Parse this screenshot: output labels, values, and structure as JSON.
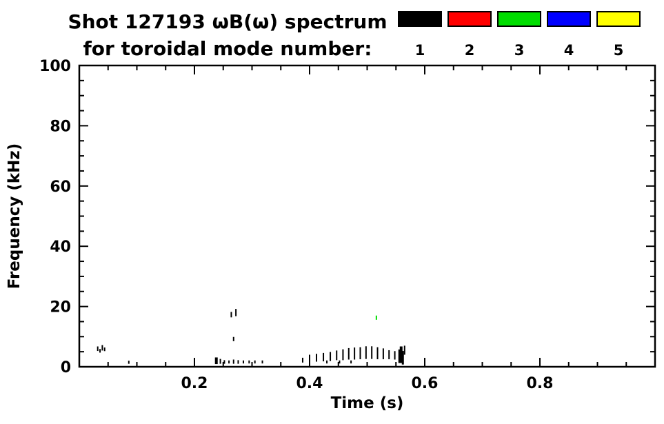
{
  "page": {
    "background": "#ffffff"
  },
  "chart_data": {
    "type": "scatter",
    "title_line1": "Shot 127193 ωB(ω) spectrum",
    "title_line2": "for toroidal mode number:",
    "xlabel": "Time (s)",
    "ylabel": "Frequency (kHz)",
    "xlim": [
      0.0,
      1.0
    ],
    "ylim": [
      0,
      100
    ],
    "xticks": [
      0.2,
      0.4,
      0.6,
      0.8
    ],
    "yticks": [
      0,
      20,
      40,
      60,
      80,
      100
    ],
    "x_minor_step": 0.05,
    "y_minor_step": 5,
    "grid": false,
    "legend_position": "top-right",
    "legend": [
      {
        "label": "1",
        "color": "#000000"
      },
      {
        "label": "2",
        "color": "#ff0000"
      },
      {
        "label": "3",
        "color": "#00dd00"
      },
      {
        "label": "4",
        "color": "#0000ff"
      },
      {
        "label": "5",
        "color": "#ffff00"
      }
    ],
    "points": [
      {
        "t": 0.032,
        "f": 6.0,
        "mode": 1,
        "h": 1.5
      },
      {
        "t": 0.036,
        "f": 5.3,
        "mode": 1,
        "h": 1.2
      },
      {
        "t": 0.04,
        "f": 6.3,
        "mode": 1,
        "h": 1.8
      },
      {
        "t": 0.044,
        "f": 5.8,
        "mode": 1,
        "h": 1.2
      },
      {
        "t": 0.086,
        "f": 1.5,
        "mode": 1,
        "h": 1.0
      },
      {
        "t": 0.238,
        "f": 2.0,
        "mode": 1,
        "h": 2.2,
        "w": 4
      },
      {
        "t": 0.245,
        "f": 1.8,
        "mode": 1,
        "h": 1.6
      },
      {
        "t": 0.252,
        "f": 1.6,
        "mode": 1,
        "h": 1.2
      },
      {
        "t": 0.26,
        "f": 1.6,
        "mode": 1,
        "h": 1.0
      },
      {
        "t": 0.268,
        "f": 1.7,
        "mode": 1,
        "h": 1.4
      },
      {
        "t": 0.276,
        "f": 1.6,
        "mode": 1,
        "h": 1.2
      },
      {
        "t": 0.285,
        "f": 1.6,
        "mode": 1,
        "h": 1.0
      },
      {
        "t": 0.295,
        "f": 1.6,
        "mode": 1,
        "h": 1.0
      },
      {
        "t": 0.305,
        "f": 1.6,
        "mode": 1,
        "h": 1.0
      },
      {
        "t": 0.318,
        "f": 1.6,
        "mode": 1,
        "h": 1.0
      },
      {
        "t": 0.264,
        "f": 17.3,
        "mode": 1,
        "h": 1.8
      },
      {
        "t": 0.272,
        "f": 18.0,
        "mode": 1,
        "h": 2.4
      },
      {
        "t": 0.268,
        "f": 9.2,
        "mode": 1,
        "h": 1.4
      },
      {
        "t": 0.388,
        "f": 2.2,
        "mode": 1,
        "h": 1.6
      },
      {
        "t": 0.4,
        "f": 2.8,
        "mode": 1,
        "h": 2.4
      },
      {
        "t": 0.412,
        "f": 3.0,
        "mode": 1,
        "h": 2.6
      },
      {
        "t": 0.424,
        "f": 3.2,
        "mode": 1,
        "h": 2.8
      },
      {
        "t": 0.436,
        "f": 3.4,
        "mode": 1,
        "h": 3.0
      },
      {
        "t": 0.447,
        "f": 3.8,
        "mode": 1,
        "h": 3.2
      },
      {
        "t": 0.458,
        "f": 4.0,
        "mode": 1,
        "h": 3.6
      },
      {
        "t": 0.468,
        "f": 4.3,
        "mode": 1,
        "h": 3.8
      },
      {
        "t": 0.478,
        "f": 4.4,
        "mode": 1,
        "h": 4.0
      },
      {
        "t": 0.488,
        "f": 4.5,
        "mode": 1,
        "h": 4.0
      },
      {
        "t": 0.498,
        "f": 4.7,
        "mode": 1,
        "h": 4.2
      },
      {
        "t": 0.508,
        "f": 4.7,
        "mode": 1,
        "h": 4.2
      },
      {
        "t": 0.518,
        "f": 4.5,
        "mode": 1,
        "h": 4.0
      },
      {
        "t": 0.528,
        "f": 4.3,
        "mode": 1,
        "h": 3.6
      },
      {
        "t": 0.538,
        "f": 4.0,
        "mode": 1,
        "h": 3.0
      },
      {
        "t": 0.548,
        "f": 3.8,
        "mode": 1,
        "h": 2.8
      },
      {
        "t": 0.43,
        "f": 1.6,
        "mode": 1,
        "h": 1.0
      },
      {
        "t": 0.452,
        "f": 1.6,
        "mode": 1,
        "h": 1.0
      },
      {
        "t": 0.472,
        "f": 1.6,
        "mode": 1,
        "h": 1.0
      },
      {
        "t": 0.516,
        "f": 16.3,
        "mode": 3,
        "h": 1.4
      },
      {
        "t": 0.556,
        "f": 3.5,
        "mode": 1,
        "h": 4.5,
        "w": 3
      },
      {
        "t": 0.559,
        "f": 4.0,
        "mode": 1,
        "h": 5.5,
        "w": 4
      },
      {
        "t": 0.562,
        "f": 3.0,
        "mode": 1,
        "h": 4.5,
        "w": 3
      },
      {
        "t": 0.565,
        "f": 5.5,
        "mode": 1,
        "h": 3.0,
        "w": 2
      }
    ]
  }
}
